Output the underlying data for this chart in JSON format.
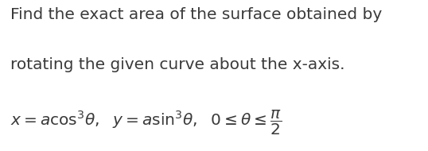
{
  "line1": "Find the exact area of the surface obtained by",
  "line2": "rotating the given curve about the x-axis.",
  "math_text": "$x = a\\cos^3\\!\\theta,\\ \\ y = a\\sin^3\\!\\theta,\\ \\ 0 \\leq \\theta \\leq \\dfrac{\\pi}{2}$",
  "bg_color": "#ffffff",
  "text_color": "#3a3a3a",
  "font_size_body": 14.5,
  "font_size_math": 14.5,
  "figwidth": 5.38,
  "figheight": 1.9,
  "dpi": 100
}
